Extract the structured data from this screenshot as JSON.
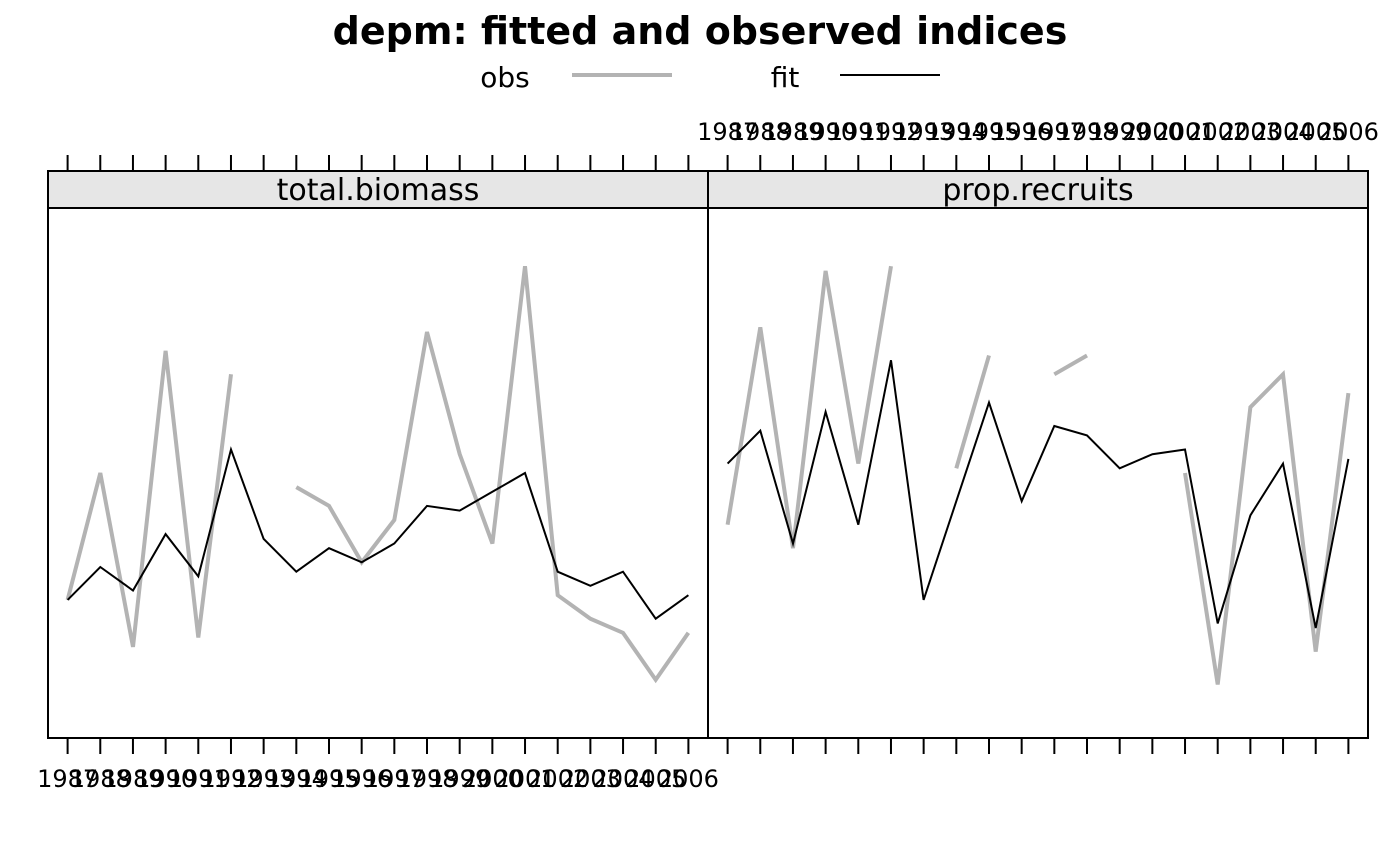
{
  "chart_data": {
    "type": "line",
    "title": "depm: fitted and observed indices",
    "legend": {
      "placement": "top",
      "items": [
        {
          "label": "obs",
          "color": "#b3b3b3",
          "style": "thick-line"
        },
        {
          "label": "fit",
          "color": "#000000",
          "style": "thin-line"
        }
      ]
    },
    "x": [
      1987,
      1988,
      1989,
      1990,
      1991,
      1992,
      1993,
      1994,
      1995,
      1996,
      1997,
      1998,
      1999,
      2000,
      2001,
      2002,
      2003,
      2004,
      2005,
      2006
    ],
    "xlim": [
      1986.4,
      2006.6
    ],
    "ylim": [
      0.0,
      1.0
    ],
    "y_axis_labels_shown": false,
    "panels": [
      {
        "name": "total.biomass",
        "x_tick_labels_position": "bottom",
        "series": [
          {
            "name": "obs",
            "color": "#b3b3b3",
            "values": [
              0.23,
              0.5,
              0.13,
              0.76,
              0.15,
              0.71,
              null,
              0.47,
              0.43,
              0.31,
              0.4,
              0.8,
              0.54,
              0.35,
              0.94,
              0.24,
              0.19,
              0.16,
              0.06,
              0.16
            ]
          },
          {
            "name": "fit",
            "color": "#000000",
            "values": [
              0.23,
              0.3,
              0.25,
              0.37,
              0.28,
              0.55,
              0.36,
              0.29,
              0.34,
              0.31,
              0.35,
              0.43,
              0.42,
              0.46,
              0.5,
              0.29,
              0.26,
              0.29,
              0.19,
              0.24
            ]
          }
        ]
      },
      {
        "name": "prop.recruits",
        "x_tick_labels_position": "top",
        "series": [
          {
            "name": "obs",
            "color": "#b3b3b3",
            "values": [
              0.39,
              0.81,
              0.34,
              0.93,
              0.52,
              0.94,
              null,
              0.51,
              0.75,
              null,
              0.71,
              0.75,
              null,
              null,
              0.5,
              0.05,
              0.64,
              0.71,
              0.12,
              0.67
            ]
          },
          {
            "name": "fit",
            "color": "#000000",
            "values": [
              0.52,
              0.59,
              0.35,
              0.63,
              0.39,
              0.74,
              0.23,
              0.44,
              0.65,
              0.44,
              0.6,
              0.58,
              0.51,
              0.54,
              0.55,
              0.18,
              0.41,
              0.52,
              0.17,
              0.53
            ]
          }
        ]
      }
    ]
  }
}
